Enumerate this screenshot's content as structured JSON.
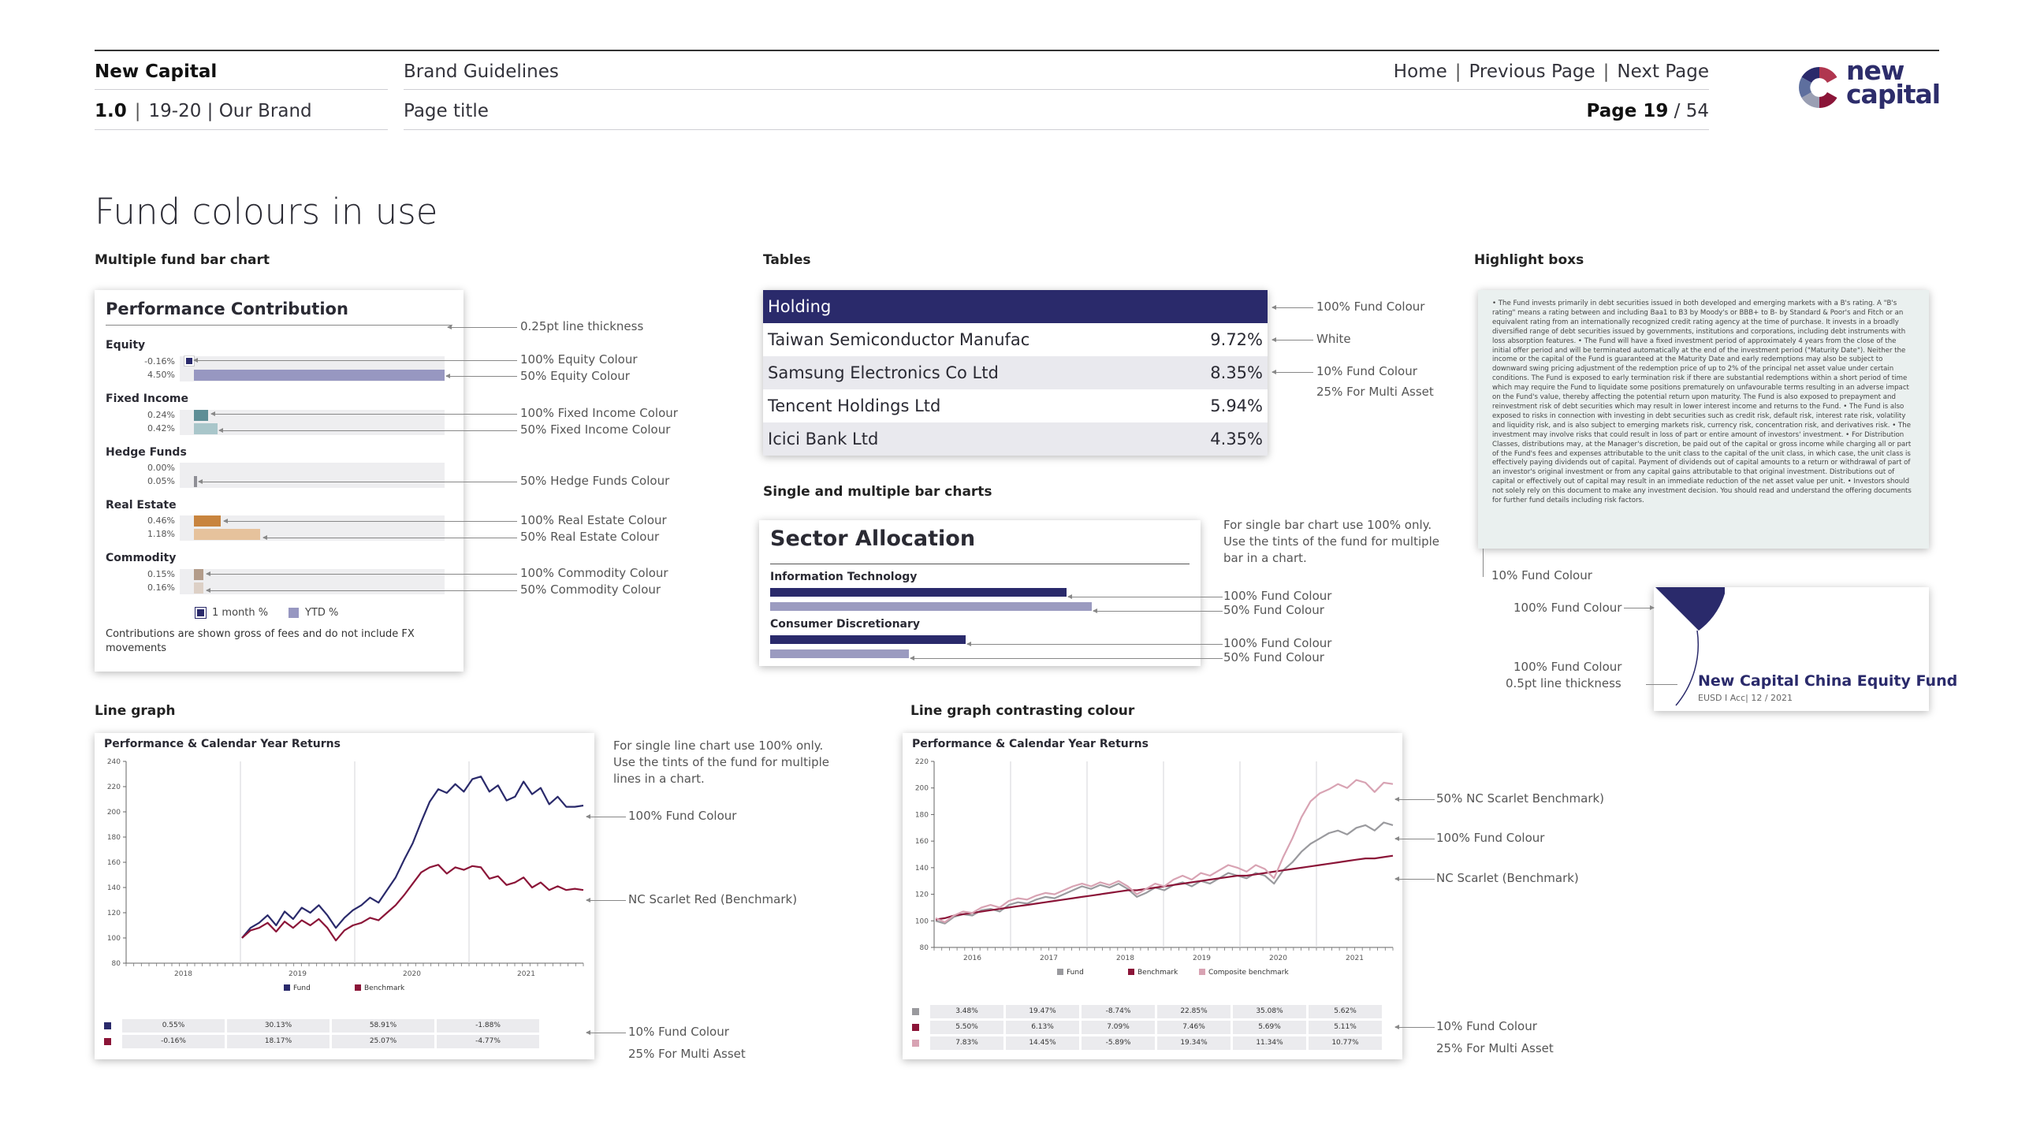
{
  "header": {
    "brand": "New Capital",
    "section_num": "1.0",
    "section_text": "19-20 | Our Brand",
    "doc_title": "Brand Guidelines",
    "page_title_placeholder": "Page title",
    "nav": {
      "home": "Home",
      "previous": "Previous Page",
      "next": "Next Page"
    },
    "page_label": "Page 19",
    "page_total": "/ 54",
    "logo_line1": "new",
    "logo_line2": "capital"
  },
  "colors": {
    "navy": "#2a2a6b",
    "navy_tint": "#9b9bc0",
    "scarlet": "#8b1538",
    "scarlet_tint": "#d8a3b3",
    "grey": "#9a9a9e",
    "equity": "#2a2a6b",
    "equity_tint": "#9797c1",
    "fixed_income": "#5e8e96",
    "fixed_income_tint": "#a9c6ca",
    "hedge": "#8f8f96",
    "hedge_tint": "#d4d4d8",
    "real_estate": "#c8843e",
    "real_estate_tint": "#e6c29c",
    "commodity": "#b39c8a",
    "commodity_tint": "#ddd0c6"
  },
  "page_title": "Fund colours in use",
  "sections": {
    "bar_chart": "Multiple fund bar chart",
    "tables": "Tables",
    "highlight": "Highlight boxs",
    "single_multi": "Single and multiple bar charts",
    "line_graph": "Line graph",
    "line_contrast": "Line graph contrasting colour"
  },
  "perf_contribution": {
    "title": "Performance Contribution",
    "categories": [
      {
        "name": "Equity",
        "v1": "-0.16%",
        "v2": "4.50%"
      },
      {
        "name": "Fixed Income",
        "v1": "0.24%",
        "v2": "0.42%"
      },
      {
        "name": "Hedge Funds",
        "v1": "0.00%",
        "v2": "0.05%"
      },
      {
        "name": "Real Estate",
        "v1": "0.46%",
        "v2": "1.18%"
      },
      {
        "name": "Commodity",
        "v1": "0.15%",
        "v2": "0.16%"
      }
    ],
    "legend": {
      "a": "1 month %",
      "b": "YTD %"
    },
    "footnote": "Contributions are shown gross of fees and do not include FX movements"
  },
  "perf_annotations": [
    "0.25pt line thickness",
    "100% Equity Colour",
    "50% Equity Colour",
    "100% Fixed Income Colour",
    "50% Fixed Income Colour",
    "50% Hedge Funds Colour",
    "100% Real Estate Colour",
    "50% Real Estate Colour",
    "100% Commodity Colour",
    "50% Commodity Colour"
  ],
  "table": {
    "header": "Holding",
    "rows": [
      {
        "name": "Taiwan Semiconductor Manufac",
        "pct": "9.72%"
      },
      {
        "name": "Samsung Electronics Co Ltd",
        "pct": "8.35%"
      },
      {
        "name": "Tencent Holdings Ltd",
        "pct": "5.94%"
      },
      {
        "name": "Icici Bank Ltd",
        "pct": "4.35%"
      }
    ],
    "annotations": [
      "100% Fund Colour",
      "White",
      "10% Fund Colour",
      "25% For Multi Asset"
    ]
  },
  "sector": {
    "title": "Sector Allocation",
    "categories": [
      {
        "name": "Information Technology",
        "a": 0.66,
        "b": 0.72
      },
      {
        "name": "Consumer Discretionary",
        "a": 0.44,
        "b": 0.31
      }
    ],
    "note": "For single bar chart use 100% only. Use the tints of the fund for multiple bar in a chart.",
    "annotations": [
      "100% Fund Colour",
      "50% Fund Colour",
      "100% Fund Colour",
      "50% Fund Colour"
    ]
  },
  "highlight": {
    "text": "• The Fund invests primarily in debt securities issued in both developed and emerging markets with a B's rating. A \"B's rating\" means a rating between and including Baa1 to B3 by Moody's or BBB+ to B- by Standard & Poor's and Fitch or an equivalent rating from an internationally recognized credit rating agency at the time of purchase. It invests in a broadly diversified range of debt securities issued by governments, institutions and corporations, including debt instruments with loss absorption features. • The Fund will have a fixed investment period of approximately 4 years from the close of the initial offer period and will be terminated automatically at the end of the investment period (\"Maturity Date\"). Neither the income or the capital of the Fund is guaranteed at the Maturity Date and early redemptions may also be subject to downward swing pricing adjustment of the redemption price of up to 2% of the principal net asset value under certain conditions. The Fund is exposed to early termination risk if there are substantial redemptions within a short period of time which may require the Fund to liquidate some positions prematurely on unfavourable terms resulting in an adverse impact on the Fund's value, thereby affecting the potential return upon maturity. The Fund is also exposed to prepayment and reinvestment risk of debt securities which may result in lower interest income and returns to the Fund. • The Fund is also exposed to risks in connection with investing in debt securities such as credit risk, default risk, interest rate risk, volatility and liquidity risk, and is also subject to emerging markets risk, currency risk, concentration risk, and derivatives risk. • The investment may involve risks that could result in loss of part or entire amount of investors' investment. • For Distribution Classes, distributions may, at the Manager's discretion, be paid out of the capital or gross income while charging all or part of the Fund's fees and expenses attributable to the unit class to the capital of the unit class, in which case, the unit class is effectively paying dividends out of capital. Payment of dividends out of capital amounts to a return or withdrawal of part of an investor's original investment or from any capital gains attributable to that original investment. Distributions out of capital or effectively out of capital may result in an immediate reduction of the net asset value per unit. • Investors should not solely rely on this document to make any investment decision. You should read and understand the offering documents for further fund details including risk factors.",
    "annotation": "10% Fund Colour"
  },
  "china_fund": {
    "title": "New Capital China Equity Fund",
    "subtitle": "EUSD I Acc| 12 / 2021",
    "annotations": [
      "100% Fund Colour",
      "100% Fund Colour",
      "0.5pt line thickness"
    ]
  },
  "line_graph": {
    "title": "Performance & Calendar Year Returns",
    "note": "For single line chart use 100% only. Use the tints of the fund for multiple lines in a chart.",
    "annotations": [
      "100% Fund Colour",
      "NC Scarlet Red (Benchmark)",
      "10% Fund Colour",
      "25% For Multi Asset"
    ],
    "table": [
      {
        "color": "#2a2a6b",
        "cells": [
          "0.55%",
          "30.13%",
          "58.91%",
          "-1.88%"
        ]
      },
      {
        "color": "#8b1538",
        "cells": [
          "-0.16%",
          "18.17%",
          "25.07%",
          "-4.77%"
        ]
      }
    ]
  },
  "line_contrast": {
    "title": "Performance & Calendar Year Returns",
    "annotations": [
      "50% NC Scarlet Benchmark)",
      "100% Fund Colour",
      "NC Scarlet (Benchmark)",
      "10% Fund Colour",
      "25% For Multi Asset"
    ],
    "table": [
      {
        "color": "#9a9a9e",
        "cells": [
          "3.48%",
          "19.47%",
          "-8.74%",
          "22.85%",
          "35.08%",
          "5.62%"
        ]
      },
      {
        "color": "#8b1538",
        "cells": [
          "5.50%",
          "6.13%",
          "7.09%",
          "7.46%",
          "5.69%",
          "5.11%"
        ]
      },
      {
        "color": "#d8a3b3",
        "cells": [
          "7.83%",
          "14.45%",
          "-5.89%",
          "19.34%",
          "11.34%",
          "10.77%"
        ]
      }
    ]
  },
  "chart_data": [
    {
      "type": "line",
      "title": "Performance & Calendar Year Returns",
      "ylim": [
        80,
        240
      ],
      "yticks": [
        80,
        100,
        120,
        140,
        160,
        180,
        200,
        220,
        240
      ],
      "xticks": [
        "2018",
        "2019",
        "2020",
        "2021"
      ],
      "x": [
        0,
        1,
        2,
        3,
        4,
        5,
        6,
        7,
        8,
        9,
        10,
        11,
        12,
        13,
        14,
        15,
        16,
        17,
        18,
        19,
        20,
        21,
        22,
        23,
        24,
        25,
        26,
        27,
        28,
        29,
        30,
        31,
        32,
        33,
        34,
        35,
        36,
        37,
        38,
        39,
        40
      ],
      "series": [
        {
          "name": "Fund",
          "color": "#2a2a6b",
          "values": [
            100,
            108,
            112,
            118,
            110,
            121,
            115,
            124,
            120,
            126,
            118,
            108,
            116,
            122,
            126,
            132,
            128,
            138,
            148,
            162,
            175,
            192,
            208,
            218,
            215,
            222,
            216,
            226,
            228,
            216,
            221,
            209,
            212,
            224,
            214,
            219,
            206,
            212,
            204,
            204,
            205
          ]
        },
        {
          "name": "Benchmark",
          "color": "#8b1538",
          "values": [
            100,
            106,
            108,
            112,
            105,
            113,
            108,
            114,
            110,
            115,
            108,
            98,
            106,
            110,
            112,
            116,
            114,
            120,
            126,
            134,
            143,
            152,
            156,
            158,
            151,
            156,
            154,
            157,
            156,
            147,
            149,
            142,
            144,
            148,
            140,
            144,
            138,
            141,
            138,
            139,
            138
          ]
        }
      ]
    },
    {
      "type": "line",
      "title": "Performance & Calendar Year Returns",
      "ylim": [
        80,
        220
      ],
      "yticks": [
        80,
        100,
        120,
        140,
        160,
        180,
        200,
        220
      ],
      "xticks": [
        "2016",
        "2017",
        "2018",
        "2019",
        "2020",
        "2021"
      ],
      "x": [
        0,
        1,
        2,
        3,
        4,
        5,
        6,
        7,
        8,
        9,
        10,
        11,
        12,
        13,
        14,
        15,
        16,
        17,
        18,
        19,
        20,
        21,
        22,
        23,
        24,
        25,
        26,
        27,
        28,
        29,
        30,
        31,
        32,
        33,
        34,
        35,
        36,
        37,
        38,
        39,
        40,
        41,
        42,
        43,
        44,
        45,
        46,
        47,
        48,
        49,
        50
      ],
      "series": [
        {
          "name": "Fund",
          "color": "#9a9a9e",
          "values": [
            100,
            98,
            103,
            105,
            104,
            108,
            109,
            107,
            112,
            114,
            113,
            116,
            118,
            117,
            120,
            123,
            126,
            124,
            127,
            125,
            128,
            124,
            118,
            121,
            125,
            123,
            127,
            129,
            126,
            130,
            128,
            132,
            136,
            134,
            132,
            136,
            134,
            128,
            138,
            144,
            152,
            158,
            162,
            166,
            168,
            165,
            170,
            172,
            168,
            174,
            172
          ]
        },
        {
          "name": "Benchmark",
          "color": "#8b1538",
          "values": [
            101,
            102,
            104,
            105,
            106,
            107,
            108,
            109,
            110,
            111,
            112,
            113,
            114,
            115,
            116,
            117,
            118,
            119,
            120,
            121,
            122,
            123,
            123,
            124,
            125,
            126,
            127,
            128,
            129,
            130,
            131,
            132,
            133,
            134,
            134,
            135,
            136,
            137,
            138,
            139,
            140,
            141,
            142,
            143,
            144,
            145,
            146,
            147,
            147,
            148,
            149
          ]
        },
        {
          "name": "Composite benchmark",
          "color": "#d8a3b3",
          "values": [
            102,
            99,
            104,
            107,
            106,
            110,
            112,
            110,
            115,
            117,
            116,
            119,
            121,
            120,
            123,
            126,
            128,
            126,
            129,
            127,
            130,
            126,
            120,
            124,
            128,
            126,
            131,
            134,
            131,
            136,
            134,
            138,
            142,
            140,
            137,
            142,
            139,
            132,
            148,
            162,
            178,
            190,
            196,
            199,
            203,
            200,
            206,
            204,
            197,
            204,
            203
          ]
        }
      ]
    }
  ]
}
